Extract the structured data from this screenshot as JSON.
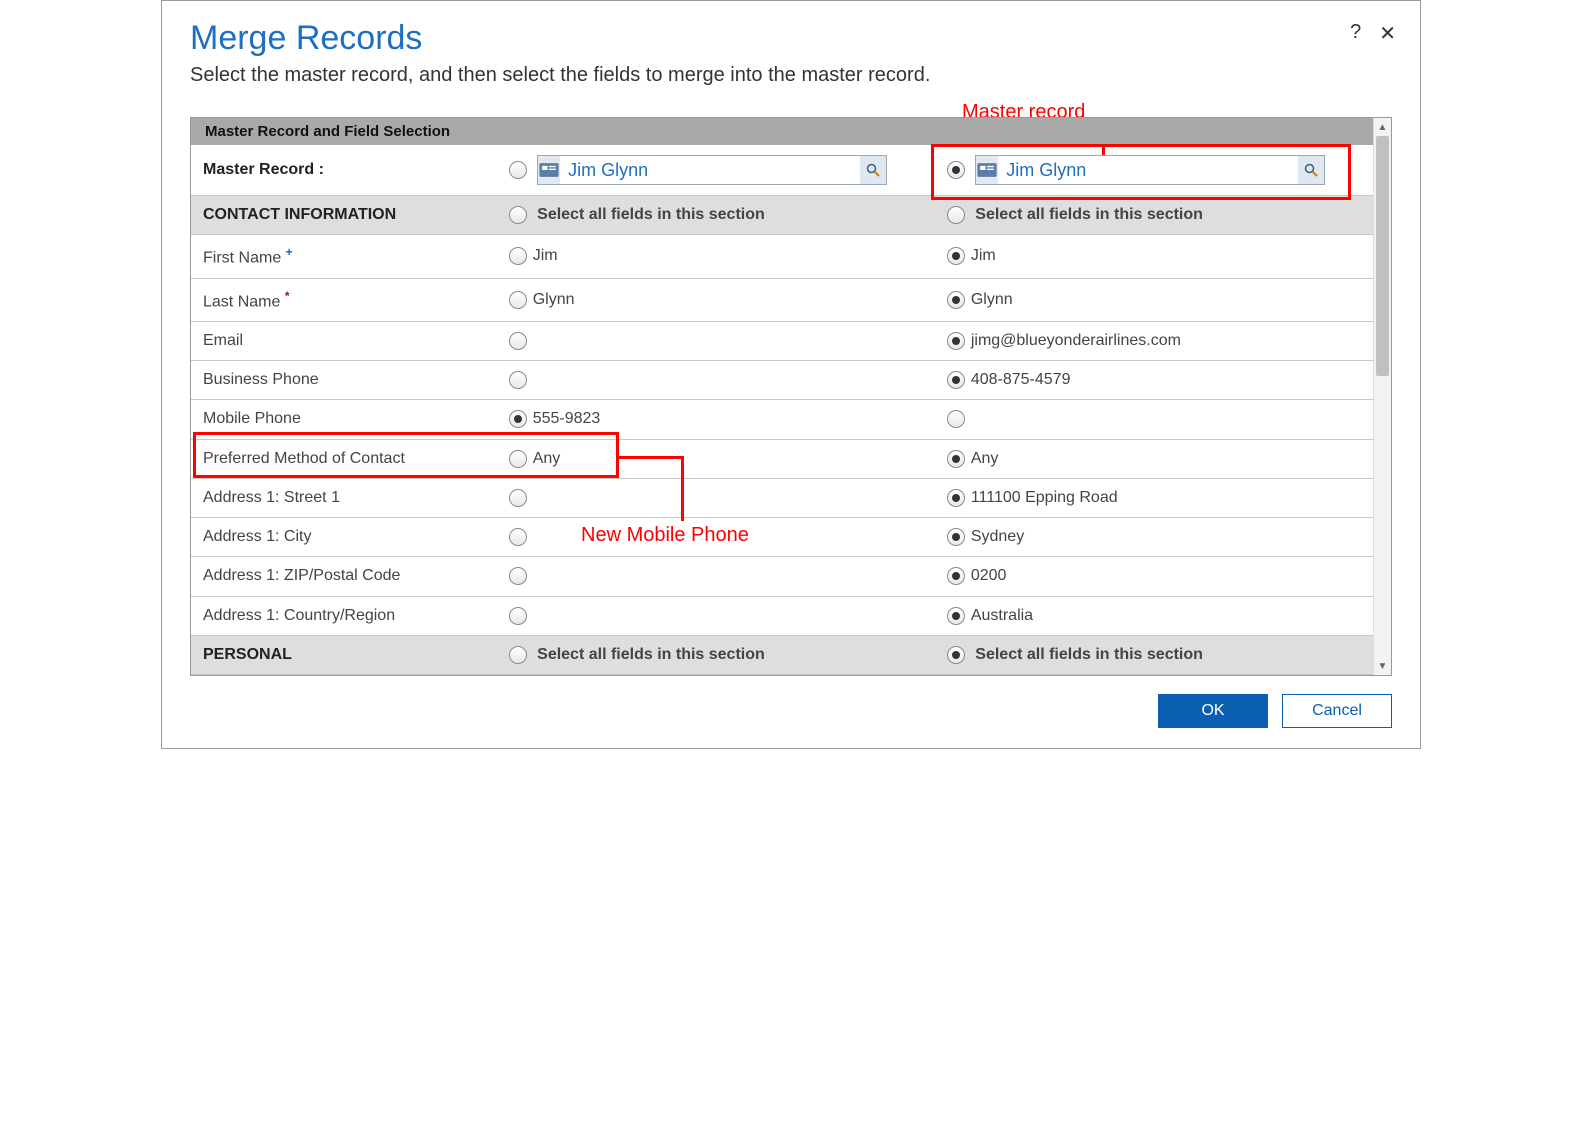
{
  "dialog": {
    "title": "Merge Records",
    "subtitle": "Select the master record, and then select the fields to merge into the master record.",
    "help_label": "?",
    "close_label": "✕"
  },
  "section_header": "Master Record and Field Selection",
  "master_row": {
    "label": "Master Record :",
    "left": {
      "name": "Jim Glynn",
      "selected": false
    },
    "right": {
      "name": "Jim Glynn",
      "selected": true
    }
  },
  "groups": [
    {
      "title": "CONTACT INFORMATION",
      "select_all_label": "Select all fields in this section",
      "left_selected": false,
      "right_selected": false,
      "rows": [
        {
          "label": "First Name",
          "flag": "blue",
          "left": "Jim",
          "right": "Jim",
          "left_sel": false,
          "right_sel": true
        },
        {
          "label": "Last Name",
          "flag": "red",
          "left": "Glynn",
          "right": "Glynn",
          "left_sel": false,
          "right_sel": true
        },
        {
          "label": "Email",
          "flag": "",
          "left": "",
          "right": "jimg@blueyonderairlines.com",
          "left_sel": false,
          "right_sel": true
        },
        {
          "label": "Business Phone",
          "flag": "",
          "left": "",
          "right": "408-875-4579",
          "left_sel": false,
          "right_sel": true
        },
        {
          "label": "Mobile Phone",
          "flag": "",
          "left": "555-9823",
          "right": "",
          "left_sel": true,
          "right_sel": false
        },
        {
          "label": "Preferred Method of Contact",
          "flag": "",
          "left": "Any",
          "right": "Any",
          "left_sel": false,
          "right_sel": true
        },
        {
          "label": "Address 1: Street 1",
          "flag": "",
          "left": "",
          "right": "111100 Epping Road",
          "left_sel": false,
          "right_sel": true
        },
        {
          "label": "Address 1: City",
          "flag": "",
          "left": "",
          "right": "Sydney",
          "left_sel": false,
          "right_sel": true
        },
        {
          "label": "Address 1: ZIP/Postal Code",
          "flag": "",
          "left": "",
          "right": "0200",
          "left_sel": false,
          "right_sel": true
        },
        {
          "label": "Address 1: Country/Region",
          "flag": "",
          "left": "",
          "right": "Australia",
          "left_sel": false,
          "right_sel": true
        }
      ]
    },
    {
      "title": "PERSONAL",
      "select_all_label": "Select all fields in this section",
      "left_selected": false,
      "right_selected": true,
      "rows": []
    }
  ],
  "annotations": {
    "master_label": "Master record",
    "mobile_label": "New Mobile Phone"
  },
  "footer": {
    "ok": "OK",
    "cancel": "Cancel"
  },
  "style": {
    "accent_color": "#1d6fbf",
    "primary_btn_bg": "#0b5fb1",
    "annotation_color": "#ff0000",
    "header_bg": "#a9a9a9",
    "subheader_bg": "#dedede",
    "border_color": "#c9c9c9",
    "radio_dot": "#333333"
  }
}
